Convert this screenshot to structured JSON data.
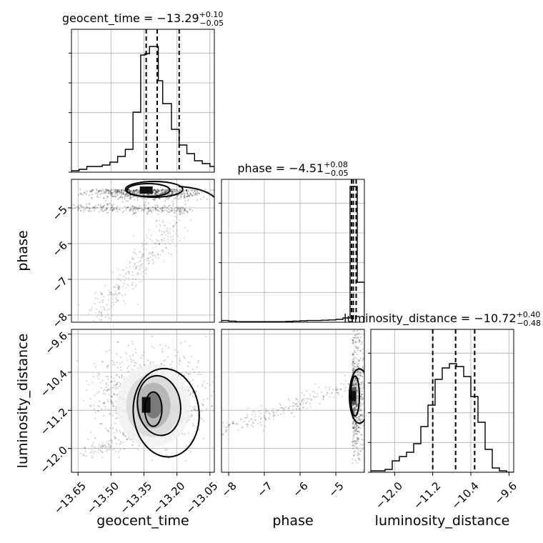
{
  "chart_data": {
    "type": "corner",
    "parameters": [
      "geocent_time",
      "phase",
      "luminosity_distance"
    ],
    "axes": {
      "geocent_time": {
        "range": [
          -13.68,
          -13.03
        ],
        "ticks": [
          -13.65,
          -13.5,
          -13.35,
          -13.2,
          -13.05
        ],
        "tick_labels": [
          "−13.65",
          "−13.50",
          "−13.35",
          "−13.20",
          "−13.05"
        ]
      },
      "phase": {
        "range": [
          -8.2,
          -4.2
        ],
        "ticks": [
          -8,
          -7,
          -6,
          -5
        ],
        "tick_labels": [
          "−8",
          "−7",
          "−6",
          "−5"
        ]
      },
      "luminosity_distance": {
        "range": [
          -12.5,
          -9.5
        ],
        "ticks": [
          -12.0,
          -11.2,
          -10.4,
          -9.6
        ],
        "tick_labels": [
          "−12.0",
          "−11.2",
          "−10.4",
          "−9.6"
        ]
      }
    },
    "marginals": [
      {
        "parameter": "geocent_time",
        "title": "geocent_time = −13.29",
        "sup": "+0.10",
        "sub": "−0.05",
        "quantiles": [
          -13.34,
          -13.29,
          -13.19
        ],
        "bin_edges": [
          -13.68,
          -13.645,
          -13.61,
          -13.575,
          -13.54,
          -13.505,
          -13.47,
          -13.435,
          -13.4,
          -13.365,
          -13.345,
          -13.325,
          -13.305,
          -13.285,
          -13.265,
          -13.245,
          -13.225,
          -13.19,
          -13.155,
          -13.12,
          -13.085,
          -13.05,
          -13.03
        ],
        "counts": [
          0.01,
          0.02,
          0.04,
          0.04,
          0.05,
          0.07,
          0.11,
          0.16,
          0.42,
          0.82,
          0.83,
          0.88,
          0.88,
          0.64,
          0.48,
          0.48,
          0.3,
          0.19,
          0.13,
          0.08,
          0.06,
          0.04
        ]
      },
      {
        "parameter": "phase",
        "title": "phase = −4.51",
        "sup": "+0.08",
        "sub": "−0.05",
        "quantiles": [
          -4.56,
          -4.51,
          -4.43
        ],
        "bin_edges": [
          -8.2,
          -8.0,
          -7.8,
          -7.6,
          -7.4,
          -7.2,
          -7.0,
          -6.8,
          -6.6,
          -6.4,
          -6.2,
          -6.0,
          -5.8,
          -5.6,
          -5.4,
          -5.2,
          -5.0,
          -4.8,
          -4.6,
          -4.4,
          -4.2
        ],
        "counts": [
          0.012,
          0.008,
          0.004,
          0.004,
          0.004,
          0.004,
          0.004,
          0.004,
          0.004,
          0.006,
          0.008,
          0.01,
          0.012,
          0.012,
          0.014,
          0.016,
          0.02,
          0.03,
          0.95,
          0.28
        ]
      },
      {
        "parameter": "luminosity_distance",
        "title": "luminosity_distance = −10.72",
        "sup": "+0.40",
        "sub": "−0.48",
        "quantiles": [
          -11.2,
          -10.72,
          -10.32
        ],
        "bin_edges": [
          -12.5,
          -12.35,
          -12.2,
          -12.05,
          -11.9,
          -11.75,
          -11.6,
          -11.45,
          -11.3,
          -11.15,
          -11.0,
          -10.85,
          -10.7,
          -10.55,
          -10.4,
          -10.25,
          -10.1,
          -9.95,
          -9.8,
          -9.65,
          -9.5
        ],
        "counts": [
          0.01,
          0.01,
          0.02,
          0.08,
          0.11,
          0.14,
          0.2,
          0.32,
          0.47,
          0.65,
          0.73,
          0.76,
          0.74,
          0.67,
          0.53,
          0.35,
          0.16,
          0.03,
          0.01,
          0.0
        ]
      }
    ],
    "pairs": [
      {
        "x": "geocent_time",
        "y": "phase",
        "mode": [
          -13.33,
          -4.55
        ],
        "contour_levels": 3,
        "density": "concentrated band near phase −4.6 to −4.7, with a sparse diagonal tail toward low geocent_time and low phase"
      },
      {
        "x": "geocent_time",
        "y": "luminosity_distance",
        "mode": [
          -13.34,
          -10.95
        ],
        "contour_levels": 3,
        "density": "single peak near geocent_time −13.34, luminosity_distance −10.95"
      },
      {
        "x": "phase",
        "y": "luminosity_distance",
        "mode": [
          -4.5,
          -10.9
        ],
        "contour_levels": 3,
        "density": "narrow vertical band at phase ≈ −4.5, faint diagonal scatter to the left"
      }
    ]
  }
}
